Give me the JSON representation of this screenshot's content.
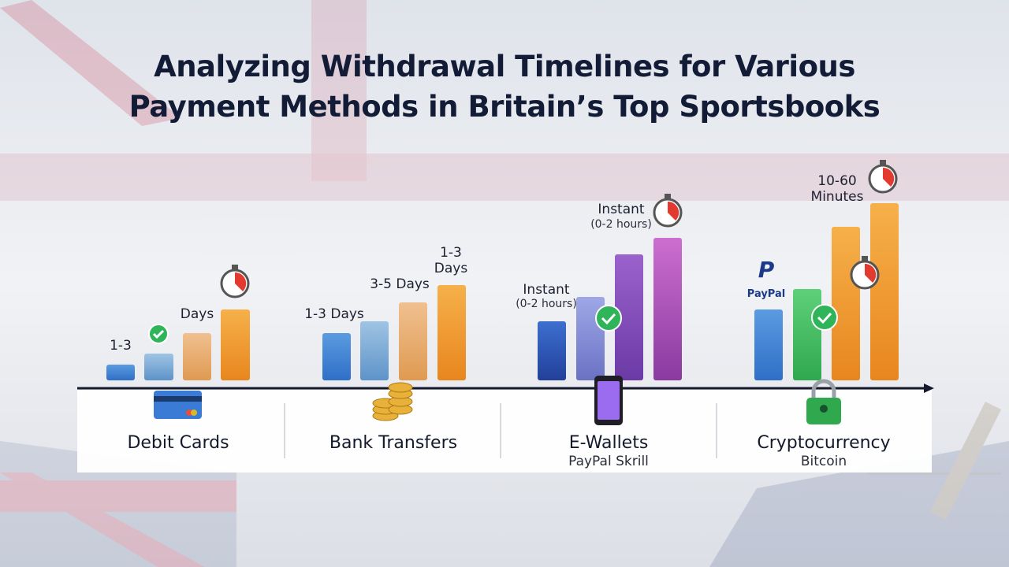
{
  "header": {
    "title_lines": [
      "Analyzing Withdrawal Timelines for Various",
      "Payment Methods in Britain’s Top Sportsbooks"
    ]
  },
  "groups": [
    {
      "label": "Debit Cards",
      "annotations": [
        "1-3",
        "Days"
      ]
    },
    {
      "label": "Bank Transfers",
      "annotations": [
        "1-3 Days",
        "3-5 Days",
        "1-3",
        "Days"
      ]
    },
    {
      "label": "E-Wallets",
      "sublabel": "PayPal Skrill",
      "annotations": [
        "Instant",
        "(0-2 hours)",
        "Instant",
        "(0-2 hours)"
      ]
    },
    {
      "label": "Cryptocurrency",
      "sublabel": "Bitcoin",
      "annotations": [
        "PayPal",
        "10-60",
        "Minutes"
      ]
    }
  ]
}
